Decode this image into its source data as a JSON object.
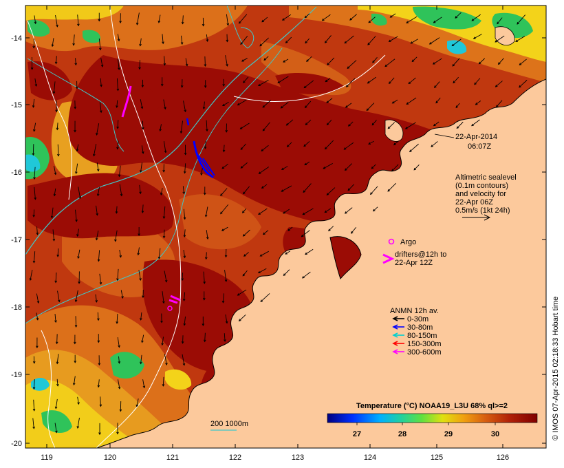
{
  "map": {
    "date": "22-Apr-2014",
    "time": "06:07Z",
    "sealevel_text": [
      "Altimetric sealevel",
      "(0.1m contours)",
      "and velocity for",
      "22-Apr 06Z",
      "0.5m/s (1kt 24h)"
    ],
    "argo_label": "Argo",
    "drifter_text": [
      "drifters@12h to",
      "22-Apr 12Z"
    ],
    "anmn_title": "ANMN 12h av.",
    "anmn_items": [
      {
        "label": "0-30m",
        "color": "#000000"
      },
      {
        "label": "30-80m",
        "color": "#0000ff"
      },
      {
        "label": "80-150m",
        "color": "#00d0d0"
      },
      {
        "label": "150-300m",
        "color": "#ff0000"
      },
      {
        "label": "300-600m",
        "color": "#ff00ff"
      }
    ],
    "depth_scale_label": "200  1000m",
    "colorbar": {
      "title": "Temperature (°C) NOAA19_L3U 68% ql>=2",
      "ticks": [
        "27",
        "28",
        "29",
        "30"
      ]
    },
    "credit": "© IMOS 07-Apr-2015 02:18:33 Hobart time",
    "x_ticks": [
      "119",
      "120",
      "121",
      "122",
      "123",
      "124",
      "125",
      "126"
    ],
    "y_ticks": [
      "-14",
      "-15",
      "-16",
      "-17",
      "-18",
      "-19",
      "-20"
    ],
    "colors": {
      "land": "#fcc99c",
      "warm": "#9b0c05",
      "mid": "#c23a12",
      "cool_orange": "#e07a1c",
      "yellow": "#f3d31a",
      "green": "#2fc35a",
      "cyan": "#20c8d8",
      "argo": "#ff00ff"
    }
  }
}
